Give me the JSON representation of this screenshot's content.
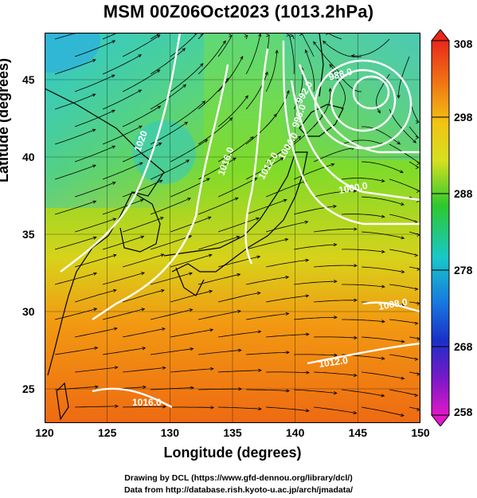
{
  "title": "MSM 00Z06Oct2023 (1013.2hPa)",
  "xlabel": "Longitude (degrees)",
  "ylabel": "Latitude  (degrees)",
  "x_ticks": [
    "120",
    "125",
    "130",
    "135",
    "140",
    "145",
    "150"
  ],
  "y_ticks": [
    "25",
    "30",
    "35",
    "40",
    "45"
  ],
  "colorbar": {
    "labels": [
      "308",
      "298",
      "288",
      "278",
      "268",
      "258"
    ]
  },
  "contour_labels": [
    "1020",
    "1016.0",
    "1012.0",
    "1008.0",
    "1004.0",
    "1000.0",
    "996.0",
    "992.0",
    "988.0",
    "1012.0",
    "1016.0"
  ],
  "credits": {
    "line1": "Drawing by DCL (https://www.gfd-dennou.org/library/dcl/)",
    "line2": "Data from http://database.rish.kyoto-u.ac.jp/arch/jmadata/"
  },
  "chart_data": {
    "type": "heatmap",
    "title": "MSM 00Z06Oct2023 (1013.2hPa)",
    "xlabel": "Longitude (degrees)",
    "ylabel": "Latitude  (degrees)",
    "xlim": [
      120,
      150
    ],
    "ylim": [
      22.4,
      47.6
    ],
    "colorbar_range": [
      258,
      308
    ],
    "colorbar_ticks": [
      258,
      268,
      278,
      288,
      298,
      308
    ],
    "contour_values": [
      1020,
      1016.0,
      1012.0,
      1008.0,
      1004.0,
      1000.0,
      996.0,
      992.0,
      988.0
    ],
    "grid": true,
    "colors": {
      "warm": "#ee6a12",
      "mid": "#39c02a",
      "cool": "#18c8c8",
      "cold": "#1a3bd8"
    }
  }
}
